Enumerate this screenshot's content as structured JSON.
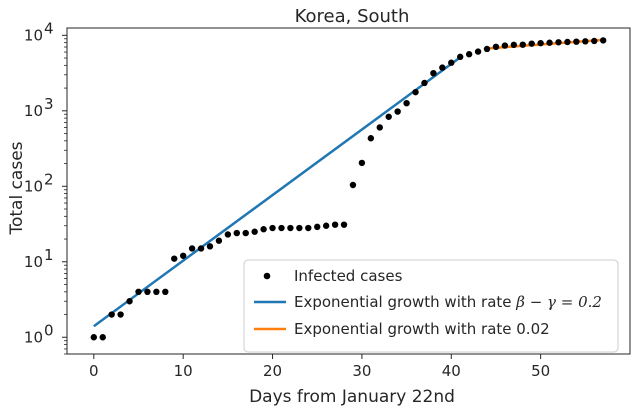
{
  "chart_data": {
    "type": "scatter",
    "title": "Korea, South",
    "xlabel": "Days from January 22nd",
    "ylabel": "Total cases",
    "xlim": [
      -3,
      60
    ],
    "ylim": [
      0.6,
      12500
    ],
    "yscale": "log",
    "grid": false,
    "legend_position": "lower-right",
    "x_ticks": [
      {
        "value": 0,
        "label": "0"
      },
      {
        "value": 10,
        "label": "10"
      },
      {
        "value": 20,
        "label": "20"
      },
      {
        "value": 30,
        "label": "30"
      },
      {
        "value": 40,
        "label": "40"
      },
      {
        "value": 50,
        "label": "50"
      }
    ],
    "y_ticks": [
      {
        "value": 1,
        "base": "10",
        "exp": "0"
      },
      {
        "value": 10,
        "base": "10",
        "exp": "1"
      },
      {
        "value": 100,
        "base": "10",
        "exp": "2"
      },
      {
        "value": 1000,
        "base": "10",
        "exp": "3"
      },
      {
        "value": 10000,
        "base": "10",
        "exp": "4"
      }
    ],
    "series": [
      {
        "name": "Infected cases",
        "kind": "scatter",
        "color": "#000000",
        "x": [
          0,
          1,
          2,
          3,
          4,
          5,
          6,
          7,
          8,
          9,
          10,
          11,
          12,
          13,
          14,
          15,
          16,
          17,
          18,
          19,
          20,
          21,
          22,
          23,
          24,
          25,
          26,
          27,
          28,
          29,
          30,
          31,
          32,
          33,
          34,
          35,
          36,
          37,
          38,
          39,
          40,
          41,
          42,
          43,
          44,
          45,
          46,
          47,
          48,
          49,
          50,
          51,
          52,
          53,
          54,
          55,
          56,
          57
        ],
        "y": [
          1,
          1,
          2,
          2,
          3,
          4,
          4,
          4,
          4,
          11,
          12,
          15,
          15,
          16,
          19,
          23,
          24,
          24,
          25,
          27,
          28,
          28,
          28,
          28,
          28,
          29,
          30,
          31,
          31,
          104,
          204,
          433,
          602,
          833,
          977,
          1261,
          1766,
          2337,
          3150,
          3736,
          4335,
          5186,
          5621,
          6088,
          6593,
          7041,
          7313,
          7478,
          7513,
          7755,
          7869,
          7979,
          8086,
          8162,
          8236,
          8320,
          8413,
          8565
        ]
      },
      {
        "name": "Exponential growth with rate ",
        "name_symbol": "β − γ = 0.2",
        "kind": "line",
        "color": "#1f77b4",
        "x": [
          0,
          41
        ],
        "y": [
          1.4,
          5100
        ]
      },
      {
        "name": "Exponential growth with rate 0.02",
        "kind": "line",
        "color": "#ff7f0e",
        "x": [
          44,
          57
        ],
        "y": [
          6700,
          8700
        ]
      }
    ]
  }
}
